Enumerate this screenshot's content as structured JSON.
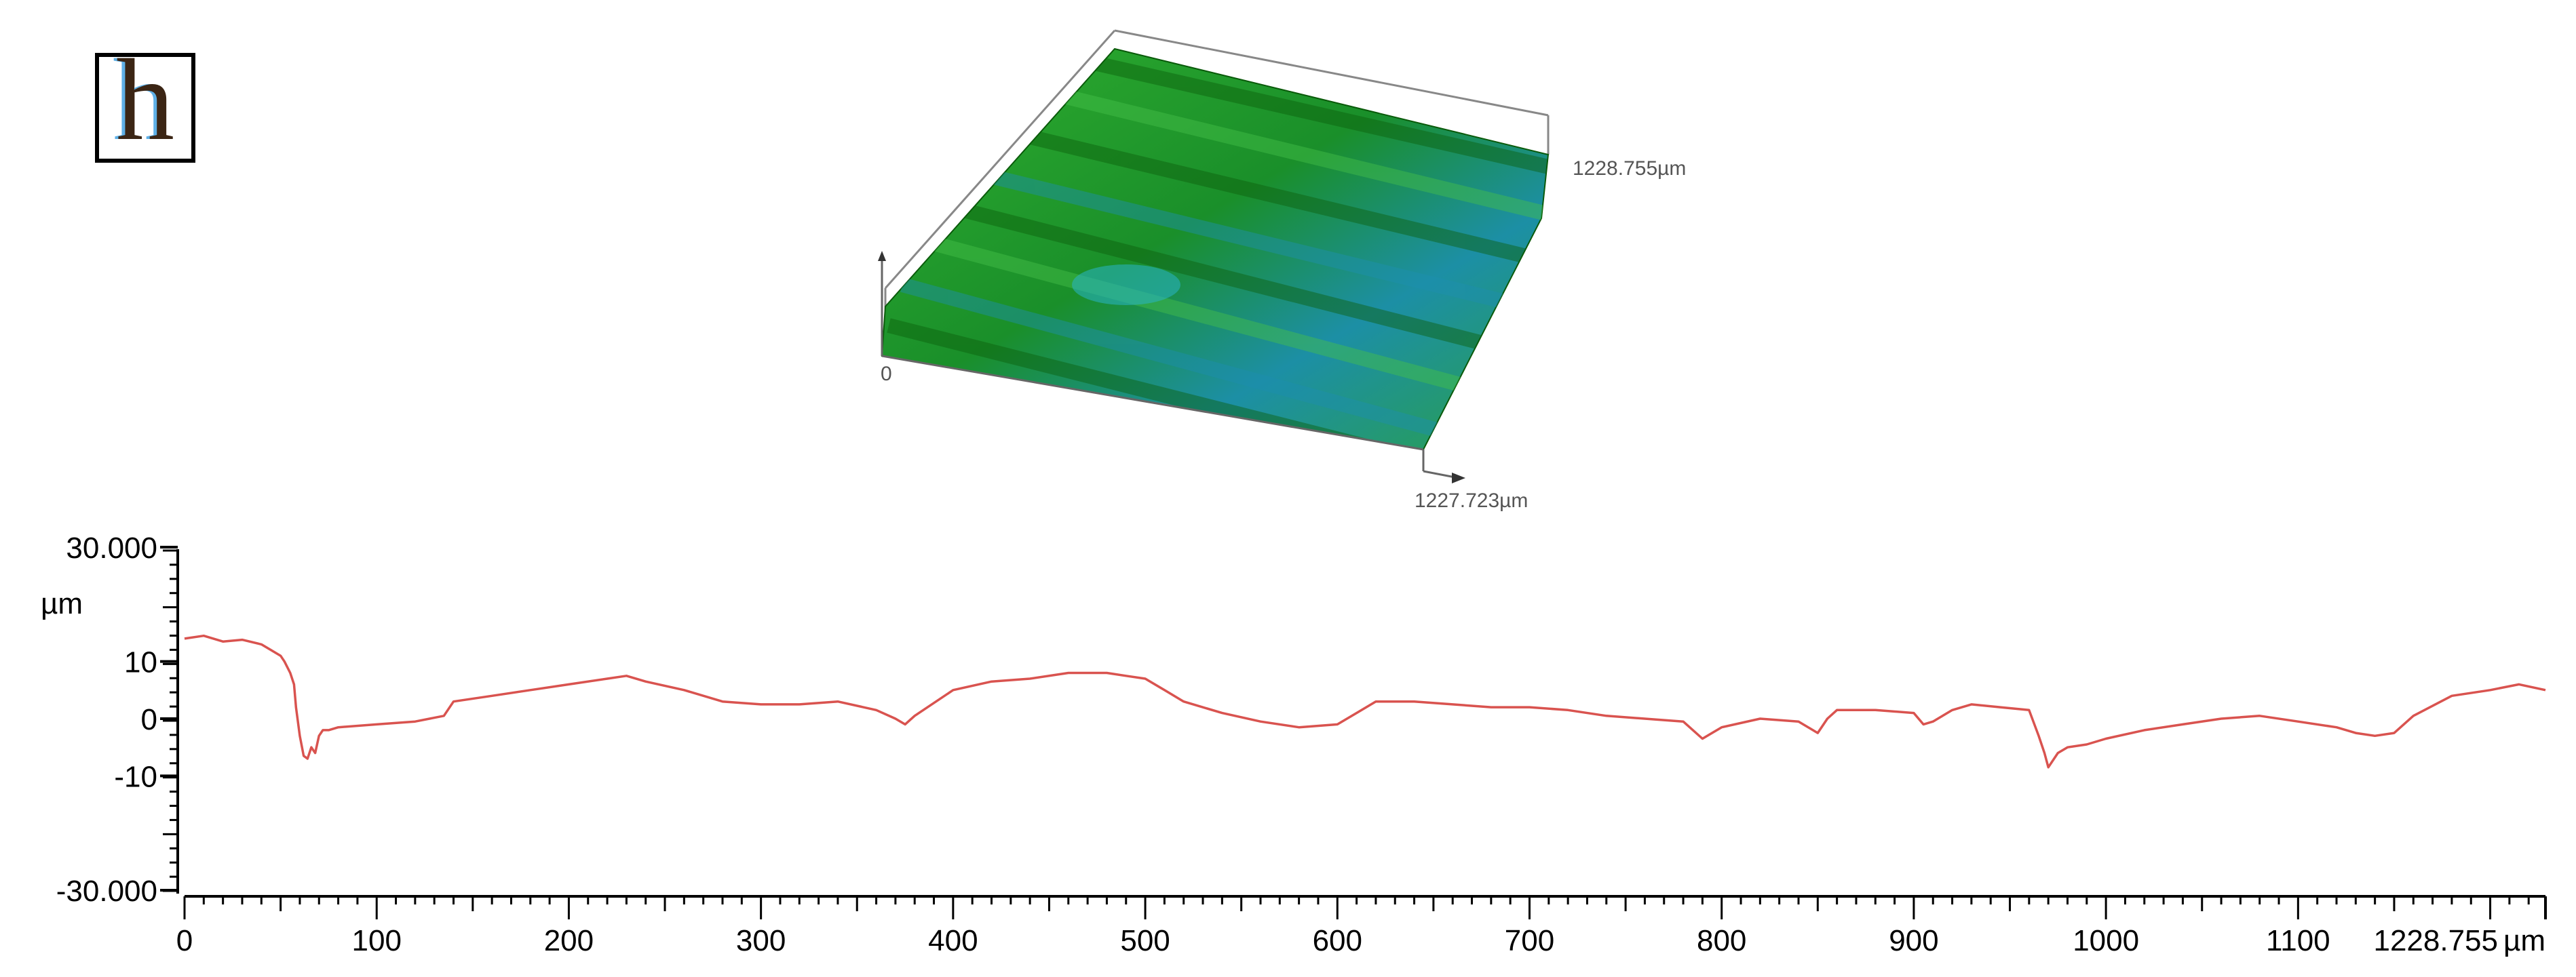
{
  "panel_label": "h",
  "surface_3d": {
    "y_extent_label": "1228.755µm",
    "x_extent_label": "1227.723µm",
    "origin_label": "0",
    "surface_colors": [
      "#0f7a0f",
      "#1f9f2f",
      "#1c7fa8"
    ]
  },
  "chart_data": {
    "type": "line",
    "title": "",
    "xlabel": "",
    "ylabel": "µm",
    "y_unit_label": "µm",
    "x_unit_label": "µm",
    "xlim": [
      0,
      1228.755
    ],
    "ylim": [
      -30,
      30
    ],
    "x_ticks": [
      0,
      100,
      200,
      300,
      400,
      500,
      600,
      700,
      800,
      900,
      1000,
      1100
    ],
    "x_tick_labels": [
      "0",
      "100",
      "200",
      "300",
      "400",
      "500",
      "600",
      "700",
      "800",
      "900",
      "1000",
      "1100"
    ],
    "x_end_label": "1228.755",
    "y_ticks": [
      30,
      10,
      0,
      -10,
      -30
    ],
    "y_tick_labels": [
      "30.000",
      "10",
      "0",
      "-10",
      "-30.000"
    ],
    "line_color": "#d9534f",
    "grid": false,
    "series": [
      {
        "x": [
          0,
          10,
          20,
          30,
          40,
          45,
          50,
          52,
          55,
          57,
          58,
          60,
          62,
          64,
          66,
          68,
          70,
          72,
          75,
          80,
          100,
          120,
          135,
          140,
          160,
          180,
          200,
          220,
          230,
          240,
          260,
          280,
          300,
          320,
          340,
          360,
          370,
          375,
          380,
          400,
          420,
          440,
          460,
          480,
          490,
          500,
          510,
          520,
          540,
          560,
          580,
          600,
          610,
          620,
          640,
          660,
          680,
          700,
          720,
          740,
          760,
          780,
          790,
          795,
          800,
          820,
          840,
          850,
          855,
          860,
          880,
          900,
          905,
          910,
          920,
          930,
          945,
          960,
          965,
          968,
          970,
          975,
          980,
          990,
          1000,
          1020,
          1040,
          1060,
          1080,
          1100,
          1120,
          1130,
          1140,
          1150,
          1160,
          1180,
          1200,
          1215,
          1228.755
        ],
        "y": [
          14,
          14.5,
          13.5,
          13.8,
          13,
          12,
          11,
          10,
          8,
          6,
          2,
          -3,
          -6.5,
          -7,
          -5,
          -6,
          -3,
          -2,
          -2,
          -1.5,
          -1,
          -0.5,
          0.5,
          3,
          4,
          5,
          6,
          7,
          7.5,
          6.5,
          5,
          3,
          2.5,
          2.5,
          3,
          1.5,
          0,
          -1,
          0.5,
          5,
          6.5,
          7,
          8,
          8,
          7.5,
          7,
          5,
          3,
          1,
          -0.5,
          -1.5,
          -1,
          1,
          3,
          3,
          2.5,
          2,
          2,
          1.5,
          0.5,
          0,
          -0.5,
          -3.5,
          -2.5,
          -1.5,
          0,
          -0.5,
          -2.5,
          0,
          1.5,
          1.5,
          1,
          -1,
          -0.5,
          1.5,
          2.5,
          2,
          1.5,
          -3,
          -6,
          -8.5,
          -6,
          -5,
          -4.5,
          -3.5,
          -2,
          -1,
          0,
          0.5,
          -0.5,
          -1.5,
          -2.5,
          -3,
          -2.5,
          0.5,
          4,
          5,
          6,
          5
        ]
      }
    ]
  }
}
